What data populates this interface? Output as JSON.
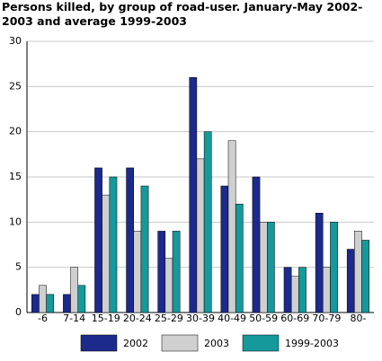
{
  "chart_data": {
    "type": "bar",
    "title": "Persons killed, by group of road-user. January-May 2002-2003 and average 1999-2003",
    "categories": [
      "-6",
      "7-14",
      "15-19",
      "20-24",
      "25-29",
      "30-39",
      "40-49",
      "50-59",
      "60-69",
      "70-79",
      "80-"
    ],
    "series": [
      {
        "name": "2002",
        "color": "#1c2a8c",
        "values": [
          2,
          2,
          16,
          16,
          9,
          26,
          14,
          15,
          5,
          11,
          7
        ]
      },
      {
        "name": "2003",
        "color": "#cfcfcf",
        "values": [
          3,
          5,
          13,
          9,
          6,
          17,
          19,
          10,
          4,
          5,
          9
        ]
      },
      {
        "name": "1999-2003",
        "color": "#15999a",
        "values": [
          2,
          3,
          15,
          14,
          9,
          20,
          12,
          10,
          5,
          10,
          8
        ]
      }
    ],
    "ylim": [
      0,
      30
    ],
    "yticks": [
      0,
      5,
      10,
      15,
      20,
      25,
      30
    ],
    "grid": true
  }
}
